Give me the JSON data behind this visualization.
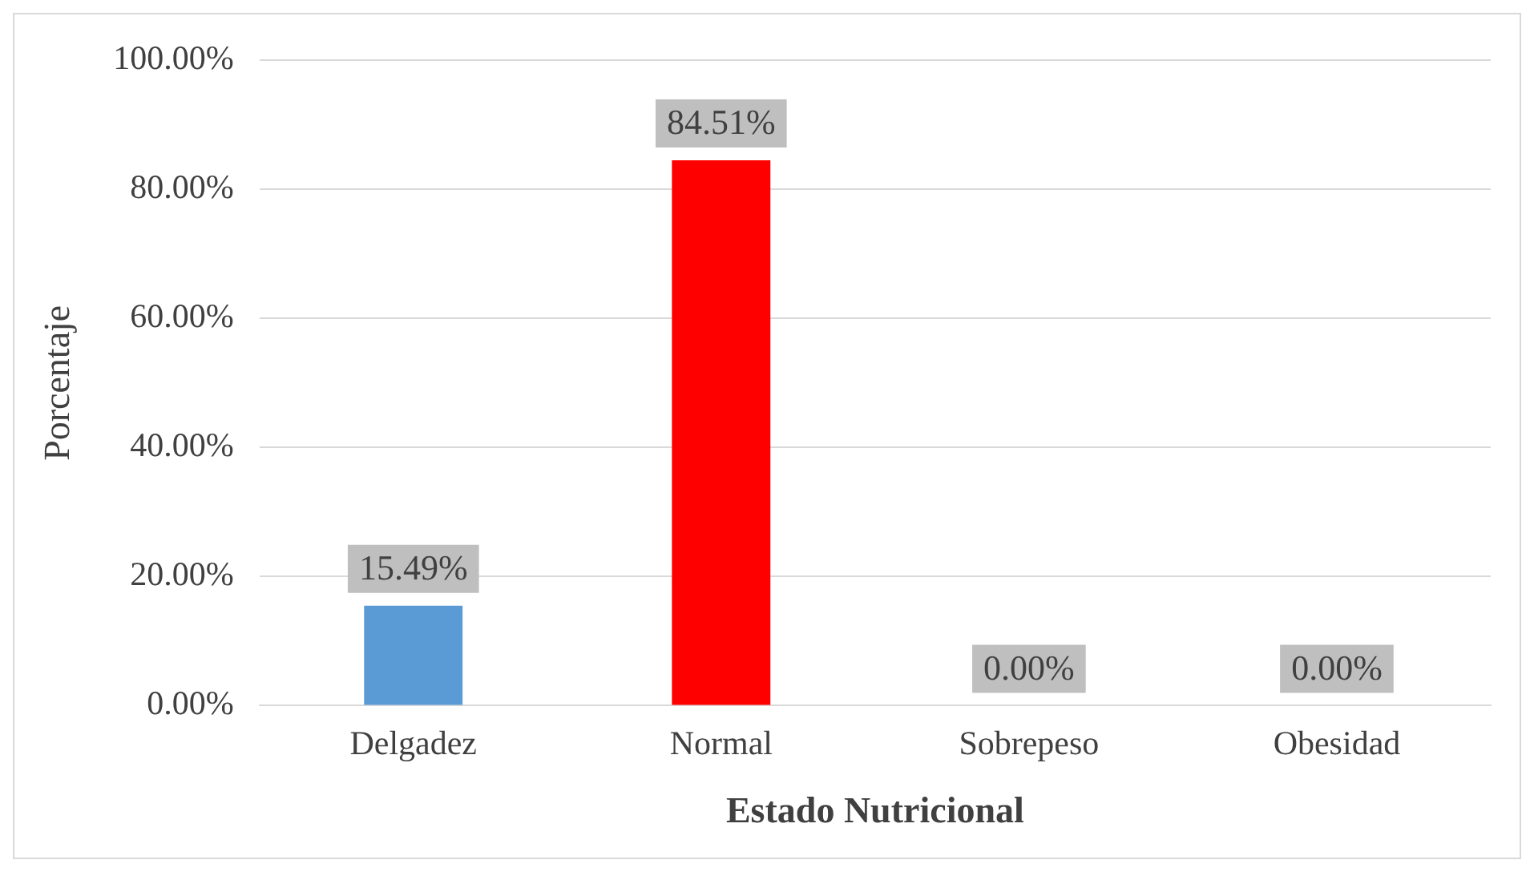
{
  "chart_data": {
    "type": "bar",
    "xlabel": "Estado Nutricional",
    "ylabel": "Porcentaje",
    "categories": [
      "Delgadez",
      "Normal",
      "Sobrepeso",
      "Obesidad"
    ],
    "values": [
      15.49,
      84.51,
      0,
      0
    ],
    "colors": [
      "#5b9bd5",
      "#ff0000",
      "#a5a5a5",
      "#ffc000"
    ],
    "value_labels": [
      "15.49%",
      "84.51%",
      "0.00%",
      "0.00%"
    ],
    "ylim": [
      0,
      100
    ],
    "yticks": [
      {
        "value": 0,
        "label": "0.00%"
      },
      {
        "value": 20,
        "label": "20.00%"
      },
      {
        "value": 40,
        "label": "40.00%"
      },
      {
        "value": 60,
        "label": "60.00%"
      },
      {
        "value": 80,
        "label": "80.00%"
      },
      {
        "value": 100,
        "label": "100.00%"
      }
    ],
    "grid": "y",
    "legend": false
  }
}
